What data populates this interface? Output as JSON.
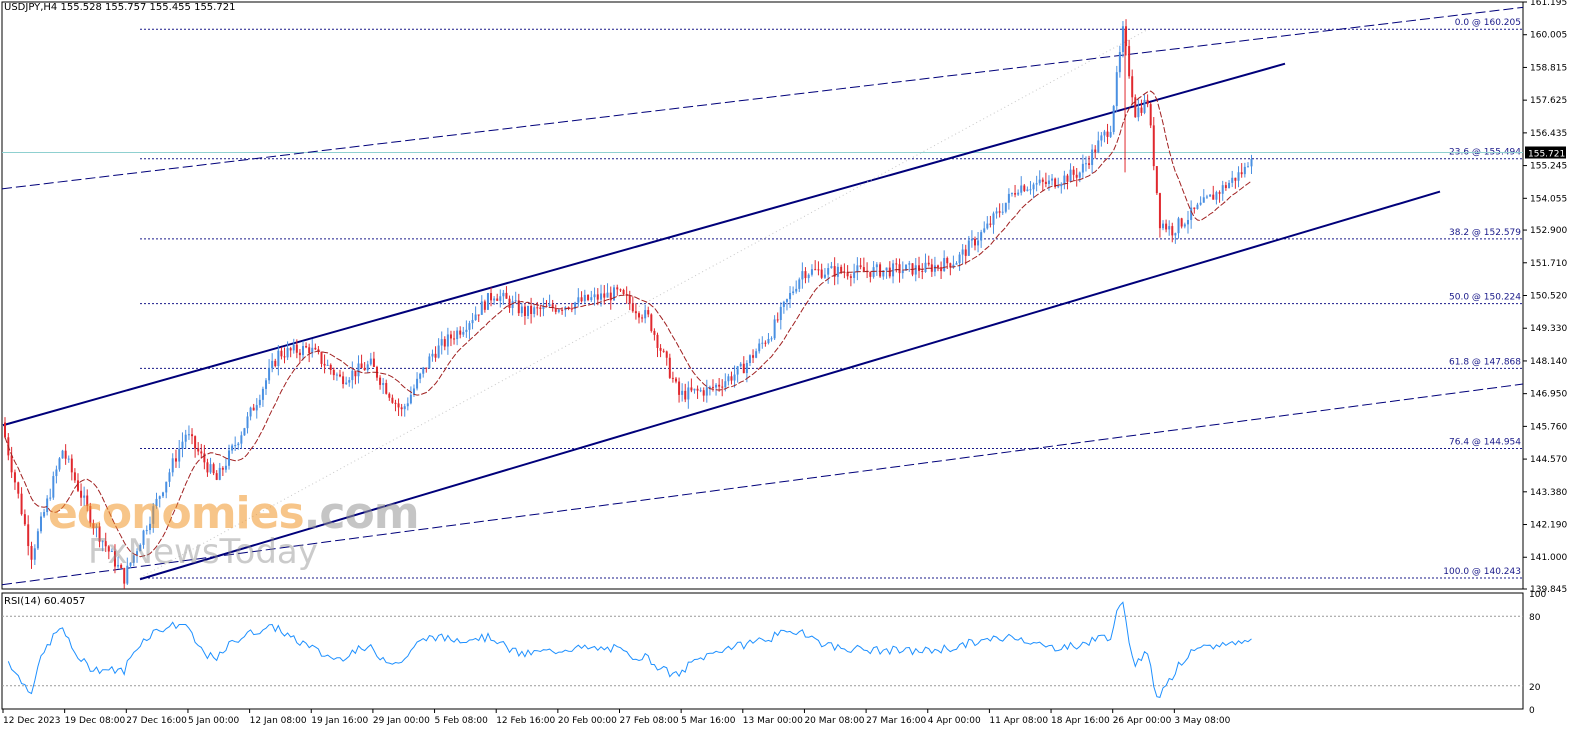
{
  "header": {
    "symbol": "USDJPY,H4",
    "ohlc": "155.528 155.757 155.455 155.721"
  },
  "rsi_header": "RSI(14) 60.4057",
  "watermark": {
    "line1_a": "economies",
    "line1_b": ".com",
    "line2": "FxNewsToday"
  },
  "colors": {
    "bull": "#4a90e2",
    "bear": "#e0282e",
    "ma": "#a02020",
    "channel": "#00007a",
    "fib": "#1a1a8a",
    "rsi": "#1e90ff",
    "price_line": "#8fd0d0"
  },
  "chart_data": {
    "type": "candlestick",
    "symbol": "USDJPY",
    "timeframe": "H4",
    "ylim": [
      139.845,
      161.195
    ],
    "price_ticks": [
      "161.195",
      "160.005",
      "158.815",
      "157.625",
      "156.435",
      "155.245",
      "154.055",
      "152.900",
      "151.710",
      "150.520",
      "149.330",
      "148.140",
      "146.950",
      "145.760",
      "144.570",
      "143.380",
      "142.190",
      "141.000",
      "139.845"
    ],
    "last_price": "155.721",
    "time_labels": [
      "12 Dec 2023",
      "19 Dec 08:00",
      "27 Dec 16:00",
      "5 Jan 00:00",
      "12 Jan 08:00",
      "19 Jan 16:00",
      "29 Jan 00:00",
      "5 Feb 08:00",
      "12 Feb 16:00",
      "20 Feb 00:00",
      "27 Feb 08:00",
      "5 Mar 16:00",
      "13 Mar 00:00",
      "20 Mar 08:00",
      "27 Mar 16:00",
      "4 Apr 00:00",
      "11 Apr 08:00",
      "18 Apr 16:00",
      "26 Apr 00:00",
      "3 May 08:00"
    ],
    "fib_levels": [
      {
        "label": "0.0 @ 160.205",
        "price": 160.205
      },
      {
        "label": "23.6 @ 155.494",
        "price": 155.494
      },
      {
        "label": "38.2 @ 152.579",
        "price": 152.579
      },
      {
        "label": "50.0 @ 150.224",
        "price": 150.224
      },
      {
        "label": "61.8 @ 147.868",
        "price": 147.868
      },
      {
        "label": "76.4 @ 144.954",
        "price": 144.954
      },
      {
        "label": "100.0 @ 140.243",
        "price": 140.243
      }
    ],
    "anchors": [
      {
        "t": "12 Dec 2023",
        "price": 145.9
      },
      {
        "t": "14 Dec 2023",
        "price": 141.1
      },
      {
        "t": "19 Dec 08:00",
        "price": 144.9
      },
      {
        "t": "21 Dec 2023",
        "price": 142.2
      },
      {
        "t": "27 Dec 16:00",
        "price": 140.25
      },
      {
        "t": "5 Jan 00:00",
        "price": 145.5
      },
      {
        "t": "8 Jan 2024",
        "price": 143.8
      },
      {
        "t": "12 Jan 08:00",
        "price": 146.0
      },
      {
        "t": "15 Jan 2024",
        "price": 148.4
      },
      {
        "t": "19 Jan 16:00",
        "price": 148.6
      },
      {
        "t": "24 Jan 2024",
        "price": 147.5
      },
      {
        "t": "29 Jan 00:00",
        "price": 148.0
      },
      {
        "t": "1 Feb 2024",
        "price": 146.3
      },
      {
        "t": "5 Feb 08:00",
        "price": 148.4
      },
      {
        "t": "9 Feb 2024",
        "price": 149.4
      },
      {
        "t": "12 Feb 16:00",
        "price": 150.6
      },
      {
        "t": "16 Feb 2024",
        "price": 149.9
      },
      {
        "t": "20 Feb 00:00",
        "price": 150.1
      },
      {
        "t": "27 Feb 08:00",
        "price": 150.6
      },
      {
        "t": "29 Feb 2024",
        "price": 149.7
      },
      {
        "t": "5 Mar 16:00",
        "price": 146.9
      },
      {
        "t": "8 Mar 2024",
        "price": 147.1
      },
      {
        "t": "13 Mar 00:00",
        "price": 147.8
      },
      {
        "t": "15 Mar 2024",
        "price": 149.2
      },
      {
        "t": "20 Mar 08:00",
        "price": 151.4
      },
      {
        "t": "27 Mar 16:00",
        "price": 151.4
      },
      {
        "t": "4 Apr 00:00",
        "price": 151.5
      },
      {
        "t": "8 Apr 2024",
        "price": 151.8
      },
      {
        "t": "11 Apr 08:00",
        "price": 153.0
      },
      {
        "t": "15 Apr 2024",
        "price": 154.5
      },
      {
        "t": "18 Apr 16:00",
        "price": 154.6
      },
      {
        "t": "24 Apr 2024",
        "price": 155.0
      },
      {
        "t": "26 Apr 00:00",
        "price": 156.7
      },
      {
        "t": "29 Apr 2024",
        "price": 160.1
      },
      {
        "t": "30 Apr 2024",
        "price": 157.2
      },
      {
        "t": "1 May 2024",
        "price": 157.6
      },
      {
        "t": "2 May 2024",
        "price": 153.2
      },
      {
        "t": "3 May 08:00",
        "price": 152.9
      },
      {
        "t": "7 May 2024",
        "price": 155.1
      },
      {
        "t": "8 May 2024",
        "price": 155.72
      }
    ],
    "rsi": {
      "period": 14,
      "current": "60.4057",
      "ylim": [
        0,
        100
      ],
      "ticks": [
        "100",
        "80",
        "20",
        "0"
      ],
      "levels": [
        80,
        20
      ]
    }
  }
}
